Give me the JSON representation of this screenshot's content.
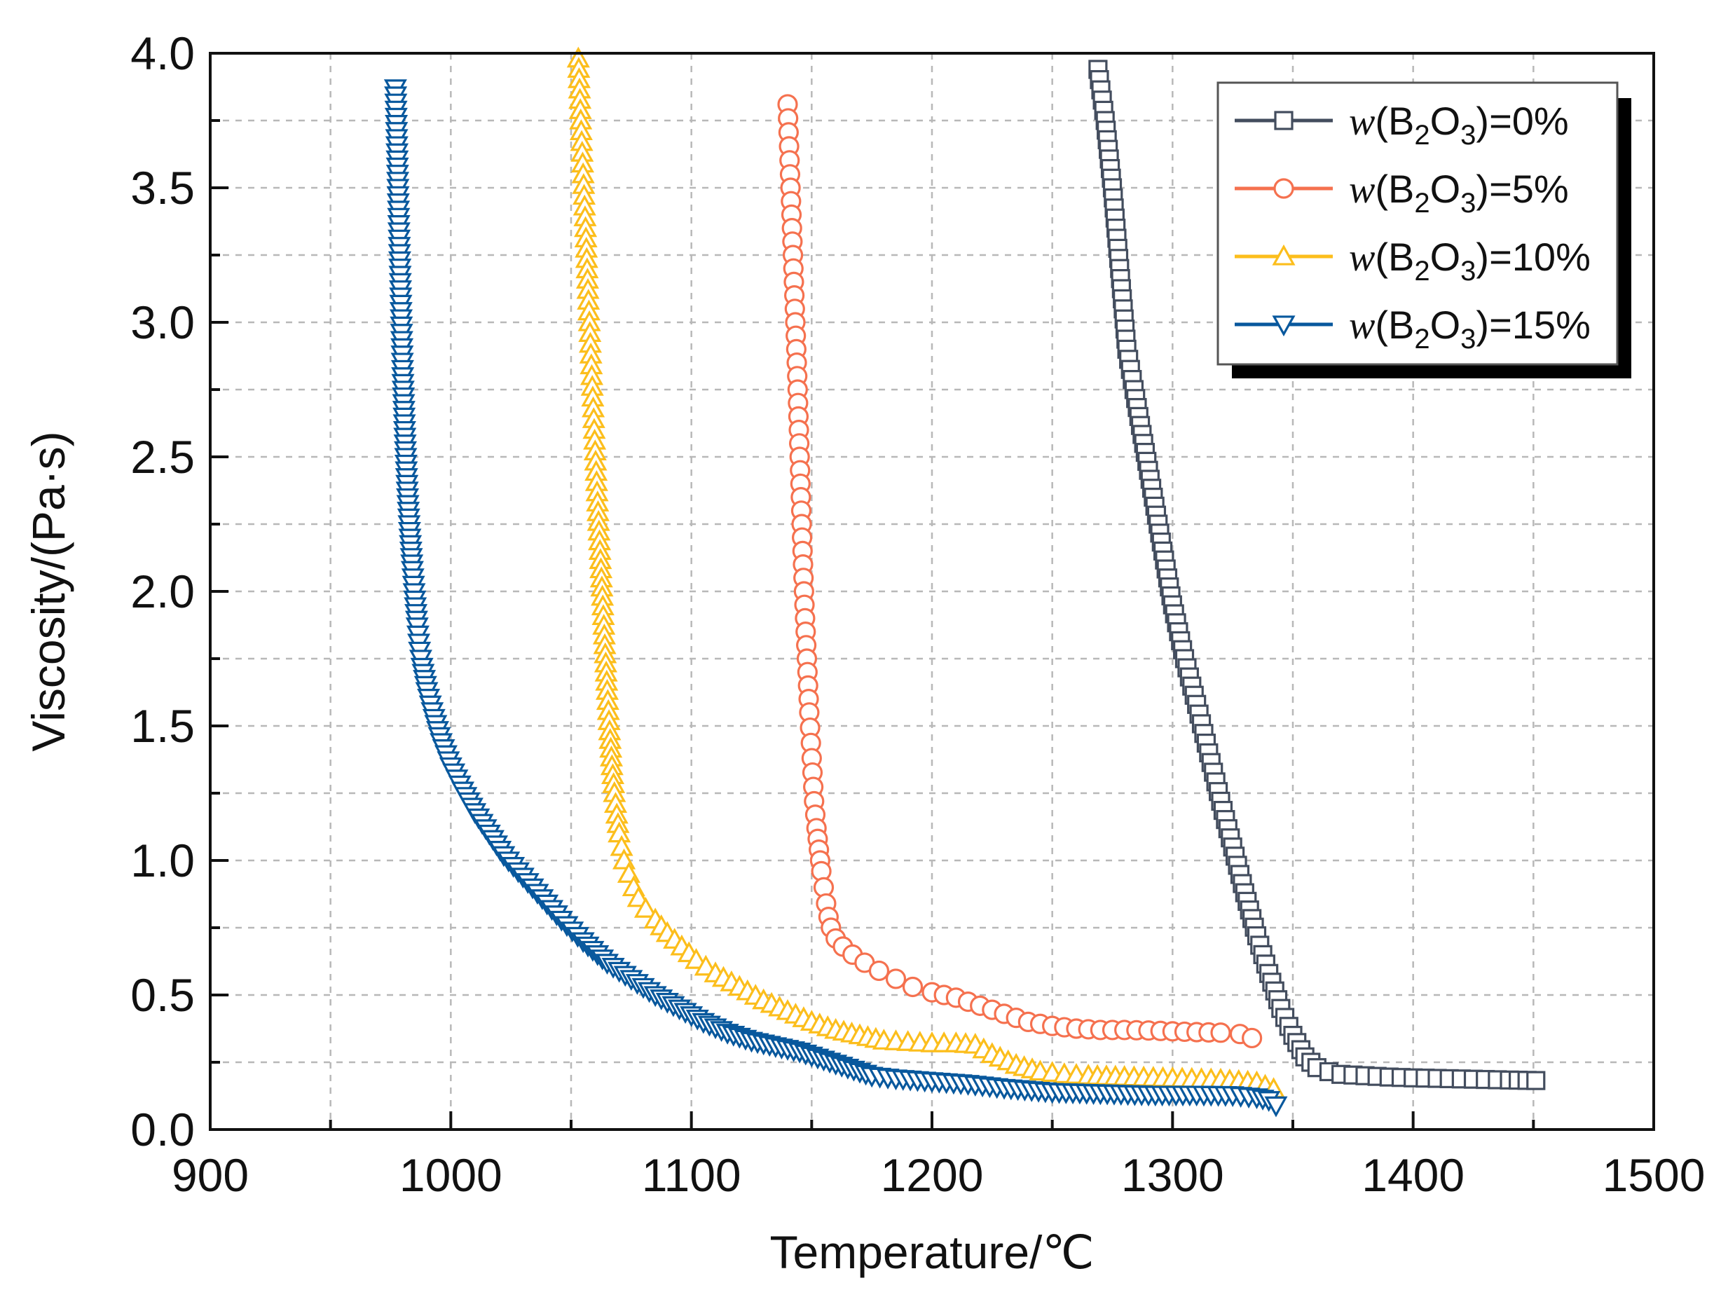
{
  "chart_data": {
    "type": "line",
    "title": "",
    "xlabel": "Temperature/℃",
    "ylabel": "Viscosity/(Pa·s)",
    "xlim": [
      900,
      1500
    ],
    "ylim": [
      0.0,
      4.0
    ],
    "x_ticks": [
      900,
      1000,
      1100,
      1200,
      1300,
      1400,
      1500
    ],
    "y_ticks": [
      0.0,
      0.5,
      1.0,
      1.5,
      2.0,
      2.5,
      3.0,
      3.5,
      4.0
    ],
    "x_tick_labels": [
      "900",
      "1000",
      "1100",
      "1200",
      "1300",
      "1400",
      "1500"
    ],
    "y_tick_labels": [
      "0.0",
      "0.5",
      "1.0",
      "1.5",
      "2.0",
      "2.5",
      "3.0",
      "3.5",
      "4.0"
    ],
    "grid": true,
    "legend_position": "top-right",
    "series": [
      {
        "name": "w(B2O3)=0%",
        "legend_var": "w",
        "legend_open": "(B",
        "legend_sub1": "2",
        "legend_mid": "O",
        "legend_sub2": "3",
        "legend_close": ")=0%",
        "color": "#434d5e",
        "marker": "square",
        "x": [
          1269,
          1272,
          1275,
          1278,
          1281,
          1284,
          1288,
          1292,
          1296,
          1300,
          1305,
          1310,
          1315,
          1320,
          1325,
          1330,
          1335,
          1340,
          1345,
          1350,
          1355,
          1360,
          1365,
          1370,
          1380,
          1390,
          1400,
          1410,
          1420,
          1430,
          1440,
          1451
        ],
        "y": [
          3.94,
          3.75,
          3.5,
          3.2,
          2.9,
          2.75,
          2.55,
          2.35,
          2.15,
          1.95,
          1.75,
          1.58,
          1.4,
          1.22,
          1.05,
          0.88,
          0.72,
          0.58,
          0.45,
          0.35,
          0.27,
          0.23,
          0.215,
          0.205,
          0.2,
          0.195,
          0.192,
          0.19,
          0.188,
          0.186,
          0.184,
          0.182
        ]
      },
      {
        "name": "w(B2O3)=5%",
        "legend_var": "w",
        "legend_open": "(B",
        "legend_sub1": "2",
        "legend_mid": "O",
        "legend_sub2": "3",
        "legend_close": ")=5%",
        "color": "#f5714f",
        "marker": "circle",
        "x": [
          1140,
          1141,
          1142,
          1143,
          1144,
          1145,
          1146,
          1147,
          1148,
          1149,
          1150,
          1151,
          1152,
          1153,
          1154,
          1155,
          1156,
          1157,
          1158,
          1160,
          1163,
          1167,
          1172,
          1178,
          1185,
          1192,
          1200,
          1210,
          1220,
          1230,
          1240,
          1250,
          1260,
          1270,
          1280,
          1290,
          1300,
          1310,
          1320,
          1328,
          1333
        ],
        "y": [
          3.81,
          3.55,
          3.3,
          3.05,
          2.8,
          2.5,
          2.2,
          1.95,
          1.75,
          1.55,
          1.38,
          1.22,
          1.12,
          1.04,
          0.96,
          0.9,
          0.84,
          0.79,
          0.75,
          0.71,
          0.68,
          0.65,
          0.62,
          0.59,
          0.56,
          0.53,
          0.51,
          0.49,
          0.46,
          0.43,
          0.4,
          0.385,
          0.375,
          0.37,
          0.37,
          0.368,
          0.365,
          0.362,
          0.36,
          0.355,
          0.34
        ]
      },
      {
        "name": "w(B2O3)=10%",
        "legend_var": "w",
        "legend_open": "(B",
        "legend_sub1": "2",
        "legend_mid": "O",
        "legend_sub2": "3",
        "legend_close": ")=10%",
        "color": "#fcbe1c",
        "marker": "triangle-up",
        "x": [
          1053,
          1054,
          1055,
          1056,
          1057,
          1058,
          1059,
          1060,
          1061,
          1062,
          1063,
          1064,
          1065,
          1066,
          1067,
          1068,
          1069,
          1070,
          1071,
          1072,
          1074,
          1076,
          1078,
          1081,
          1085,
          1090,
          1096,
          1102,
          1110,
          1120,
          1130,
          1140,
          1150,
          1160,
          1170,
          1180,
          1190,
          1200,
          1210,
          1218,
          1225,
          1235,
          1245,
          1255,
          1265,
          1280,
          1300,
          1320,
          1335,
          1342
        ],
        "y": [
          3.98,
          3.75,
          3.55,
          3.35,
          3.12,
          2.92,
          2.72,
          2.52,
          2.33,
          2.15,
          1.98,
          1.8,
          1.63,
          1.48,
          1.35,
          1.25,
          1.17,
          1.1,
          1.05,
          1.0,
          0.95,
          0.9,
          0.86,
          0.82,
          0.78,
          0.73,
          0.68,
          0.63,
          0.58,
          0.53,
          0.48,
          0.44,
          0.4,
          0.37,
          0.35,
          0.33,
          0.325,
          0.32,
          0.32,
          0.315,
          0.28,
          0.24,
          0.215,
          0.205,
          0.2,
          0.195,
          0.19,
          0.185,
          0.175,
          0.15
        ]
      },
      {
        "name": "w(B2O3)=15%",
        "legend_var": "w",
        "legend_open": "(B",
        "legend_sub1": "2",
        "legend_mid": "O",
        "legend_sub2": "3",
        "legend_close": ")=15%",
        "color": "#08589d",
        "marker": "triangle-down",
        "x": [
          977,
          978,
          979,
          980,
          981,
          982,
          983,
          984,
          985,
          986,
          987,
          988,
          990,
          993,
          996,
          1000,
          1005,
          1010,
          1016,
          1022,
          1030,
          1038,
          1046,
          1055,
          1065,
          1075,
          1085,
          1095,
          1105,
          1115,
          1125,
          1135,
          1145,
          1155,
          1165,
          1175,
          1185,
          1200,
          1215,
          1230,
          1250,
          1270,
          1290,
          1310,
          1325,
          1335,
          1340,
          1343
        ],
        "y": [
          3.87,
          3.5,
          3.15,
          2.8,
          2.55,
          2.35,
          2.2,
          2.08,
          1.97,
          1.87,
          1.78,
          1.72,
          1.63,
          1.53,
          1.44,
          1.35,
          1.26,
          1.18,
          1.1,
          1.02,
          0.94,
          0.86,
          0.78,
          0.7,
          0.62,
          0.56,
          0.5,
          0.45,
          0.4,
          0.36,
          0.33,
          0.31,
          0.29,
          0.26,
          0.23,
          0.2,
          0.19,
          0.18,
          0.17,
          0.155,
          0.14,
          0.135,
          0.13,
          0.13,
          0.128,
          0.12,
          0.11,
          0.09
        ]
      }
    ]
  }
}
